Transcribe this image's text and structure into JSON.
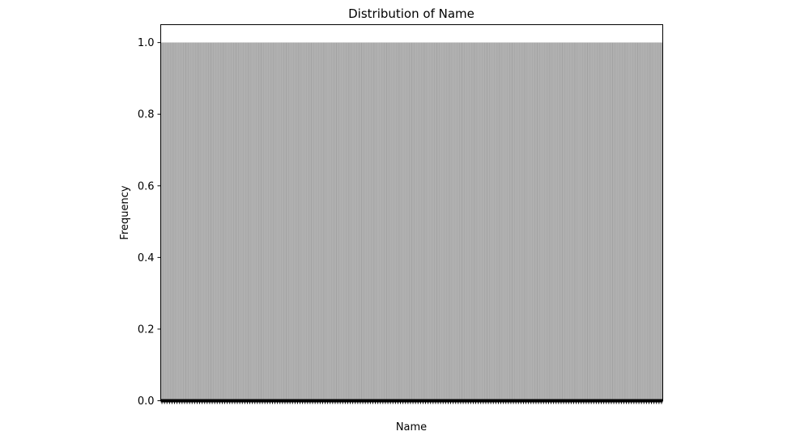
{
  "chart_data": {
    "type": "bar",
    "title": "Distribution of Name",
    "xlabel": "Name",
    "ylabel": "Frequency",
    "ylim": [
      0,
      1.05
    ],
    "yticks": [
      0.0,
      0.2,
      0.4,
      0.6,
      0.8,
      1.0
    ],
    "ytick_labels": [
      "0.0",
      "0.2",
      "0.4",
      "0.6",
      "0.8",
      "1.0"
    ],
    "bar_value": 1.0,
    "bar_count_estimate": 200,
    "grid": false,
    "legend": "none",
    "colors": {
      "bar_fill": "#b0b0b0",
      "bar_edge": "#000000",
      "axes": "#000000",
      "background": "#ffffff"
    }
  }
}
